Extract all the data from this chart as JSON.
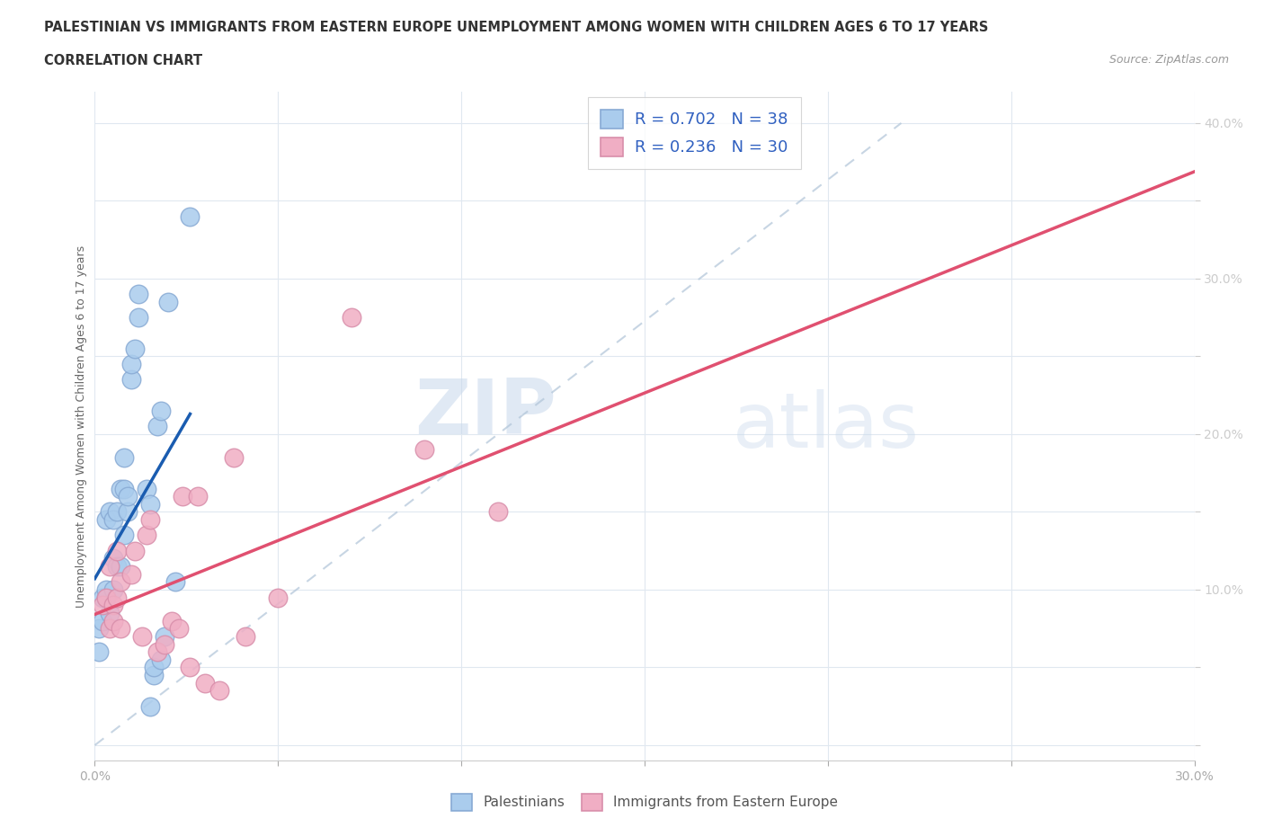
{
  "title_line1": "PALESTINIAN VS IMMIGRANTS FROM EASTERN EUROPE UNEMPLOYMENT AMONG WOMEN WITH CHILDREN AGES 6 TO 17 YEARS",
  "title_line2": "CORRELATION CHART",
  "source_text": "Source: ZipAtlas.com",
  "ylabel": "Unemployment Among Women with Children Ages 6 to 17 years",
  "xlim": [
    0.0,
    0.3
  ],
  "ylim": [
    -0.01,
    0.42
  ],
  "bg_color": "#ffffff",
  "watermark_zip": "ZIP",
  "watermark_atlas": "atlas",
  "palestinian_color": "#aacced",
  "palestinian_edge": "#88aad4",
  "eastern_europe_color": "#f0aec4",
  "eastern_europe_edge": "#d88eaa",
  "palestinian_line_color": "#1a5cb0",
  "eastern_europe_line_color": "#e05070",
  "dash_line_color": "#b0c4d8",
  "R_palestinian": 0.702,
  "N_palestinian": 38,
  "R_eastern_europe": 0.236,
  "N_eastern_europe": 30,
  "legend_label_1": "Palestinians",
  "legend_label_2": "Immigrants from Eastern Europe",
  "legend_text_color": "#3060c0",
  "palestinian_x": [
    0.001,
    0.001,
    0.002,
    0.002,
    0.003,
    0.003,
    0.003,
    0.004,
    0.004,
    0.005,
    0.005,
    0.005,
    0.006,
    0.006,
    0.007,
    0.007,
    0.008,
    0.008,
    0.008,
    0.009,
    0.009,
    0.01,
    0.01,
    0.011,
    0.012,
    0.012,
    0.014,
    0.015,
    0.015,
    0.016,
    0.016,
    0.017,
    0.018,
    0.018,
    0.019,
    0.02,
    0.022,
    0.026
  ],
  "palestinian_y": [
    0.075,
    0.06,
    0.08,
    0.095,
    0.095,
    0.1,
    0.145,
    0.15,
    0.085,
    0.1,
    0.12,
    0.145,
    0.115,
    0.15,
    0.115,
    0.165,
    0.135,
    0.165,
    0.185,
    0.15,
    0.16,
    0.235,
    0.245,
    0.255,
    0.275,
    0.29,
    0.165,
    0.155,
    0.025,
    0.045,
    0.05,
    0.205,
    0.215,
    0.055,
    0.07,
    0.285,
    0.105,
    0.34
  ],
  "eastern_europe_x": [
    0.002,
    0.003,
    0.004,
    0.004,
    0.005,
    0.005,
    0.006,
    0.006,
    0.007,
    0.007,
    0.01,
    0.011,
    0.013,
    0.014,
    0.015,
    0.017,
    0.019,
    0.021,
    0.023,
    0.024,
    0.026,
    0.028,
    0.03,
    0.034,
    0.038,
    0.041,
    0.05,
    0.07,
    0.09,
    0.11
  ],
  "eastern_europe_y": [
    0.09,
    0.095,
    0.115,
    0.075,
    0.09,
    0.08,
    0.125,
    0.095,
    0.105,
    0.075,
    0.11,
    0.125,
    0.07,
    0.135,
    0.145,
    0.06,
    0.065,
    0.08,
    0.075,
    0.16,
    0.05,
    0.16,
    0.04,
    0.035,
    0.185,
    0.07,
    0.095,
    0.275,
    0.19,
    0.15
  ],
  "pal_line_x": [
    0.0,
    0.025
  ],
  "ee_line_x": [
    0.0,
    0.3
  ],
  "dash_line_pts": [
    [
      0.022,
      0.3
    ],
    [
      0.0,
      0.0
    ]
  ]
}
